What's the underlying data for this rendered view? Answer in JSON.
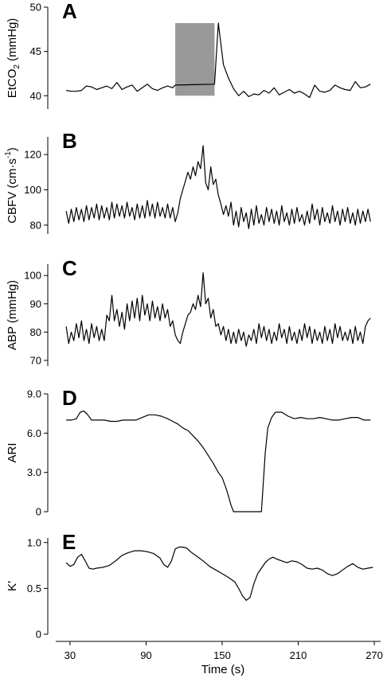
{
  "chart_data": [
    {
      "panel": "A",
      "type": "line",
      "ylabel_parts": [
        "EtCO",
        "2",
        " (mmHg)"
      ],
      "ylim": [
        38.5,
        50
      ],
      "yticks": [
        40,
        45,
        50
      ],
      "shaded_region": {
        "x": [
          113,
          144
        ],
        "y": [
          40,
          48.2
        ],
        "color": "#999999"
      },
      "series": [
        {
          "x": [
            27,
            31,
            35,
            39,
            43,
            47,
            51,
            55,
            59,
            63,
            67,
            71,
            75,
            79,
            83,
            87,
            91,
            95,
            99,
            103,
            107,
            111,
            113,
            144,
            147,
            151,
            155,
            159,
            163,
            167,
            171,
            175,
            179,
            183,
            187,
            191,
            195,
            199,
            203,
            207,
            211,
            215,
            219,
            223,
            227,
            231,
            235,
            239,
            243,
            247,
            251,
            255,
            259,
            263,
            267
          ],
          "y": [
            40.6,
            40.5,
            40.5,
            40.6,
            41.1,
            41.0,
            40.7,
            40.9,
            41.1,
            40.8,
            41.5,
            40.7,
            41.0,
            41.2,
            40.5,
            40.9,
            41.3,
            40.8,
            40.6,
            40.9,
            41.1,
            40.9,
            41.2,
            41.3,
            48.2,
            43.5,
            42.0,
            40.8,
            40.0,
            40.5,
            39.9,
            40.2,
            40.1,
            40.6,
            40.3,
            40.9,
            40.1,
            40.4,
            40.7,
            40.3,
            40.5,
            40.2,
            39.8,
            41.2,
            40.5,
            40.4,
            40.6,
            41.2,
            40.9,
            40.7,
            40.6,
            41.6,
            40.9,
            41.0,
            41.3
          ]
        }
      ]
    },
    {
      "panel": "B",
      "type": "line",
      "ylabel_parts": [
        "CBFV (cm·s",
        "-1",
        ")"
      ],
      "ylim": [
        75,
        130
      ],
      "yticks": [
        80,
        100,
        120
      ],
      "series": [
        {
          "x": [
            27,
            29,
            31,
            33,
            35,
            37,
            39,
            41,
            43,
            45,
            47,
            49,
            51,
            53,
            55,
            57,
            59,
            61,
            63,
            65,
            67,
            69,
            71,
            73,
            75,
            77,
            79,
            81,
            83,
            85,
            87,
            89,
            91,
            93,
            95,
            97,
            99,
            101,
            103,
            105,
            107,
            109,
            111,
            113,
            115,
            117,
            119,
            121,
            123,
            125,
            127,
            129,
            131,
            133,
            135,
            137,
            139,
            141,
            143,
            145,
            147,
            149,
            151,
            153,
            155,
            157,
            159,
            161,
            163,
            165,
            167,
            169,
            171,
            173,
            175,
            177,
            179,
            181,
            183,
            185,
            187,
            189,
            191,
            193,
            195,
            197,
            199,
            201,
            203,
            205,
            207,
            209,
            211,
            213,
            215,
            217,
            219,
            221,
            223,
            225,
            227,
            229,
            231,
            233,
            235,
            237,
            239,
            241,
            243,
            245,
            247,
            249,
            251,
            253,
            255,
            257,
            259,
            261,
            263,
            265,
            267
          ],
          "y": [
            88,
            81,
            89,
            82,
            90,
            83,
            89,
            82,
            91,
            83,
            90,
            84,
            92,
            83,
            91,
            84,
            90,
            83,
            93,
            84,
            92,
            85,
            91,
            84,
            93,
            85,
            90,
            83,
            92,
            84,
            91,
            84,
            94,
            85,
            92,
            84,
            93,
            85,
            90,
            84,
            92,
            84,
            90,
            82,
            87,
            95,
            100,
            105,
            110,
            106,
            113,
            108,
            116,
            112,
            125,
            104,
            100,
            113,
            103,
            106,
            97,
            92,
            86,
            91,
            85,
            93,
            80,
            88,
            79,
            90,
            82,
            87,
            78,
            89,
            80,
            91,
            81,
            86,
            80,
            90,
            82,
            89,
            81,
            88,
            80,
            91,
            82,
            87,
            80,
            89,
            81,
            90,
            82,
            86,
            80,
            88,
            81,
            92,
            83,
            89,
            80,
            90,
            82,
            87,
            81,
            91,
            82,
            88,
            80,
            89,
            82,
            90,
            81,
            87,
            80,
            89,
            81,
            88,
            82,
            89,
            82
          ]
        }
      ]
    },
    {
      "panel": "C",
      "type": "line",
      "ylabel_parts": [
        "ABP (mmHg)"
      ],
      "ylim": [
        68,
        104
      ],
      "yticks": [
        70,
        80,
        90,
        100
      ],
      "series": [
        {
          "x": [
            27,
            29,
            31,
            33,
            35,
            37,
            39,
            41,
            43,
            45,
            47,
            49,
            51,
            53,
            55,
            57,
            59,
            61,
            63,
            65,
            67,
            69,
            71,
            73,
            75,
            77,
            79,
            81,
            83,
            85,
            87,
            89,
            91,
            93,
            95,
            97,
            99,
            101,
            103,
            105,
            107,
            109,
            111,
            113,
            115,
            117,
            119,
            121,
            123,
            125,
            127,
            129,
            131,
            133,
            135,
            137,
            139,
            141,
            143,
            145,
            147,
            149,
            151,
            153,
            155,
            157,
            159,
            161,
            163,
            165,
            167,
            169,
            171,
            173,
            175,
            177,
            179,
            181,
            183,
            185,
            187,
            189,
            191,
            193,
            195,
            197,
            199,
            201,
            203,
            205,
            207,
            209,
            211,
            213,
            215,
            217,
            219,
            221,
            223,
            225,
            227,
            229,
            231,
            233,
            235,
            237,
            239,
            241,
            243,
            245,
            247,
            249,
            251,
            253,
            255,
            257,
            259,
            261,
            263,
            265,
            267
          ],
          "y": [
            82,
            76,
            80,
            77,
            83,
            78,
            84,
            77,
            81,
            76,
            83,
            78,
            82,
            77,
            81,
            77,
            86,
            84,
            93,
            84,
            88,
            82,
            87,
            81,
            90,
            84,
            91,
            85,
            92,
            84,
            93,
            86,
            90,
            84,
            91,
            85,
            89,
            84,
            90,
            85,
            88,
            82,
            84,
            79,
            77,
            76,
            80,
            83,
            86,
            87,
            90,
            88,
            93,
            89,
            101,
            90,
            92,
            85,
            88,
            82,
            83,
            79,
            82,
            77,
            81,
            76,
            80,
            76,
            81,
            77,
            80,
            75,
            79,
            77,
            81,
            76,
            83,
            78,
            82,
            77,
            81,
            76,
            80,
            77,
            83,
            78,
            81,
            76,
            82,
            77,
            80,
            76,
            81,
            77,
            83,
            78,
            82,
            76,
            81,
            77,
            80,
            76,
            82,
            77,
            81,
            76,
            83,
            78,
            82,
            77,
            80,
            77,
            81,
            76,
            82,
            77,
            80,
            76,
            82,
            84,
            85
          ]
        }
      ]
    },
    {
      "panel": "D",
      "type": "line",
      "ylabel_parts": [
        "ARI"
      ],
      "ylim": [
        0,
        9
      ],
      "yticks": [
        0,
        3.0,
        6.0,
        9.0
      ],
      "ytick_labels": [
        "0",
        "3.0",
        "6.0",
        "9.0"
      ],
      "series": [
        {
          "x": [
            27,
            31,
            35,
            38,
            41,
            44,
            47,
            52,
            57,
            62,
            67,
            72,
            77,
            82,
            87,
            92,
            97,
            102,
            107,
            111,
            115,
            119,
            123,
            127,
            131,
            135,
            139,
            143,
            147,
            150,
            153,
            155,
            157,
            159,
            161,
            165,
            169,
            173,
            177,
            181,
            182,
            184,
            186,
            189,
            192,
            197,
            202,
            207,
            212,
            217,
            222,
            227,
            232,
            237,
            242,
            247,
            252,
            257,
            262,
            267
          ],
          "y": [
            7.0,
            7.0,
            7.1,
            7.6,
            7.7,
            7.4,
            7.0,
            7.0,
            7.0,
            6.9,
            6.9,
            7.0,
            7.0,
            7.0,
            7.2,
            7.4,
            7.4,
            7.3,
            7.1,
            6.9,
            6.7,
            6.4,
            6.2,
            5.8,
            5.4,
            4.9,
            4.3,
            3.7,
            3.0,
            2.6,
            1.8,
            1.2,
            0.5,
            0,
            0,
            0,
            0,
            0,
            0,
            0,
            1.5,
            4.5,
            6.4,
            7.2,
            7.6,
            7.6,
            7.3,
            7.1,
            7.2,
            7.1,
            7.1,
            7.2,
            7.1,
            7.0,
            7.0,
            7.1,
            7.2,
            7.2,
            7.0,
            7.0
          ]
        }
      ]
    },
    {
      "panel": "E",
      "type": "line",
      "ylabel_parts": [
        "K'"
      ],
      "ylim": [
        0,
        1.05
      ],
      "yticks": [
        0,
        0.5,
        1.0
      ],
      "ytick_labels": [
        "0",
        "0.5",
        "1.0"
      ],
      "series": [
        {
          "x": [
            27,
            30,
            33,
            36,
            39,
            42,
            45,
            48,
            51,
            56,
            61,
            66,
            71,
            76,
            81,
            86,
            91,
            96,
            101,
            104,
            107,
            110,
            113,
            116,
            119,
            122,
            125,
            130,
            135,
            140,
            145,
            150,
            155,
            160,
            163,
            166,
            169,
            172,
            175,
            178,
            181,
            184,
            187,
            190,
            193,
            197,
            201,
            205,
            209,
            213,
            217,
            221,
            225,
            229,
            233,
            237,
            241,
            245,
            249,
            253,
            257,
            261,
            265,
            269
          ],
          "y": [
            0.78,
            0.74,
            0.76,
            0.84,
            0.87,
            0.8,
            0.72,
            0.71,
            0.72,
            0.73,
            0.75,
            0.8,
            0.86,
            0.89,
            0.91,
            0.91,
            0.9,
            0.88,
            0.83,
            0.76,
            0.73,
            0.8,
            0.93,
            0.95,
            0.95,
            0.94,
            0.9,
            0.85,
            0.8,
            0.74,
            0.7,
            0.66,
            0.62,
            0.57,
            0.5,
            0.42,
            0.37,
            0.4,
            0.55,
            0.66,
            0.72,
            0.78,
            0.82,
            0.84,
            0.82,
            0.8,
            0.78,
            0.8,
            0.79,
            0.76,
            0.72,
            0.71,
            0.72,
            0.7,
            0.66,
            0.64,
            0.66,
            0.7,
            0.74,
            0.77,
            0.73,
            0.71,
            0.72,
            0.73
          ]
        }
      ]
    }
  ],
  "x_axis": {
    "label": "Time (s)",
    "xlim": [
      20,
      275
    ],
    "ticks": [
      30,
      90,
      150,
      210,
      270
    ],
    "tick_labels": [
      "30",
      "90",
      "150",
      "210",
      "270"
    ]
  }
}
